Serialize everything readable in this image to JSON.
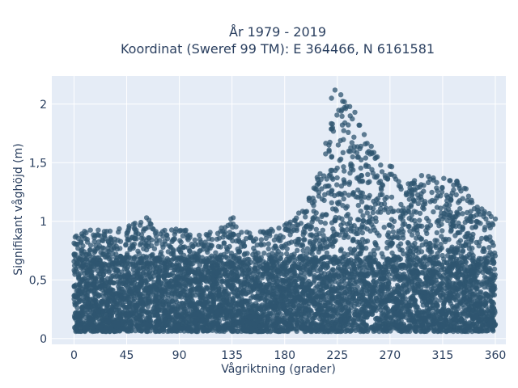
{
  "chart_data": {
    "type": "scatter",
    "title_lines": [
      "År 1979 - 2019",
      "Koordinat (Sweref 99 TM): E 364466, N 6161581"
    ],
    "xlabel": "Vågriktning (grader)",
    "ylabel": "Signifikant våghöjd (m)",
    "xlim": [
      -19,
      369
    ],
    "ylim": [
      -0.05,
      2.24
    ],
    "x_ticks": [
      0,
      45,
      90,
      135,
      180,
      225,
      270,
      315,
      360
    ],
    "x_tick_labels": [
      "0",
      "45",
      "90",
      "135",
      "180",
      "225",
      "270",
      "315",
      "360"
    ],
    "y_ticks": [
      0,
      0.5,
      1,
      1.5,
      2
    ],
    "y_tick_labels": [
      "0",
      "0,5",
      "1",
      "1,5",
      "2"
    ],
    "grid": true,
    "marker_color": "#2f5570",
    "background": "#e5ecf6",
    "envelope": {
      "x": [
        0,
        15,
        30,
        45,
        60,
        75,
        90,
        105,
        120,
        135,
        150,
        165,
        180,
        195,
        210,
        225,
        240,
        255,
        270,
        285,
        300,
        315,
        330,
        345,
        360
      ],
      "y_max": [
        0.92,
        0.93,
        0.92,
        0.95,
        1.03,
        0.93,
        0.95,
        0.88,
        0.92,
        1.03,
        0.91,
        0.93,
        0.98,
        1.08,
        1.45,
        2.12,
        1.93,
        1.62,
        1.48,
        1.36,
        1.39,
        1.37,
        1.34,
        1.16,
        1.03
      ]
    },
    "notable_points": [
      {
        "x": 223,
        "y": 2.12
      },
      {
        "x": 228,
        "y": 2.08
      },
      {
        "x": 220,
        "y": 2.05
      },
      {
        "x": 231,
        "y": 2.02
      },
      {
        "x": 233,
        "y": 1.98
      },
      {
        "x": 240,
        "y": 1.93
      },
      {
        "x": 236,
        "y": 1.9
      },
      {
        "x": 244,
        "y": 1.82
      },
      {
        "x": 248,
        "y": 1.74
      },
      {
        "x": 254,
        "y": 1.64
      },
      {
        "x": 262,
        "y": 1.48
      },
      {
        "x": 270,
        "y": 1.47
      },
      {
        "x": 275,
        "y": 1.36
      },
      {
        "x": 297,
        "y": 1.39
      },
      {
        "x": 307,
        "y": 1.37
      },
      {
        "x": 327,
        "y": 1.34
      },
      {
        "x": 340,
        "y": 1.16
      },
      {
        "x": 352,
        "y": 1.02
      },
      {
        "x": 62,
        "y": 1.03
      },
      {
        "x": 64,
        "y": 1.01
      },
      {
        "x": 134,
        "y": 1.02
      },
      {
        "x": 136,
        "y": 1.03
      },
      {
        "x": 198,
        "y": 1.08
      },
      {
        "x": 192,
        "y": 1.07
      }
    ]
  }
}
